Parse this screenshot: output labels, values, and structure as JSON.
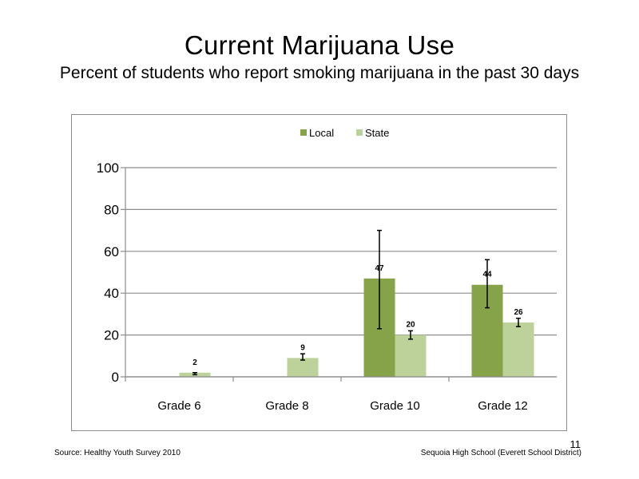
{
  "slide": {
    "title": "Current Marijuana Use",
    "subtitle": "Percent of students who report smoking marijuana in the past 30 days",
    "source": "Source: Healthy Youth Survey 2010",
    "school": "Sequoia High School (Everett School District)",
    "page_number": "11"
  },
  "chart_data": {
    "type": "bar",
    "title": "",
    "xlabel": "",
    "ylabel": "",
    "categories": [
      "Grade 6",
      "Grade 8",
      "Grade 10",
      "Grade 12"
    ],
    "ylim": [
      0,
      100
    ],
    "yticks": [
      0,
      20,
      40,
      60,
      80,
      100
    ],
    "grid": true,
    "legend_position": "top",
    "series": [
      {
        "name": "Local",
        "color": "#86a34a",
        "values": [
          null,
          null,
          47,
          44
        ],
        "labels": [
          "",
          "",
          "47",
          "44"
        ],
        "error_low": [
          null,
          null,
          23,
          33
        ],
        "error_high": [
          null,
          null,
          70,
          56
        ]
      },
      {
        "name": "State",
        "color": "#bcd29a",
        "values": [
          2,
          9,
          20,
          26
        ],
        "labels": [
          "2",
          "9",
          "20",
          "26"
        ],
        "error_low": [
          1,
          8,
          18,
          24
        ],
        "error_high": [
          2,
          11,
          22,
          28
        ]
      }
    ]
  }
}
